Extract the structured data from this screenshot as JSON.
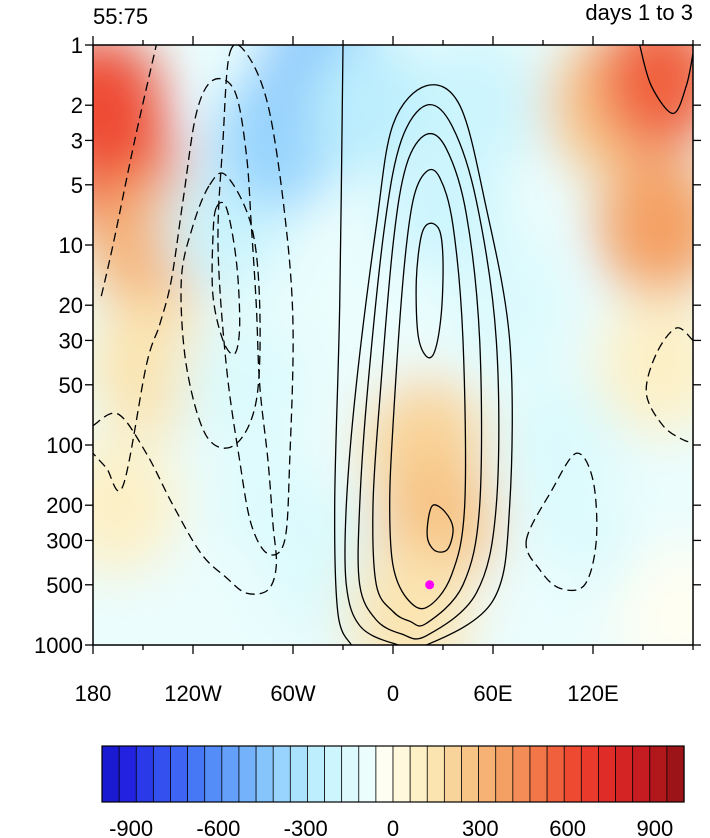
{
  "chart_data": {
    "type": "heatmap",
    "title_left": "55:75",
    "title_right": "days 1 to 3",
    "xlabel": "",
    "ylabel": "",
    "x_range": [
      -180,
      180
    ],
    "y_range": [
      1,
      1000
    ],
    "y_scale": "log",
    "y_reversed": true,
    "x_ticks": [
      {
        "value": -180,
        "label": "180"
      },
      {
        "value": -120,
        "label": "120W"
      },
      {
        "value": -60,
        "label": "60W"
      },
      {
        "value": 0,
        "label": "0"
      },
      {
        "value": 60,
        "label": "60E"
      },
      {
        "value": 120,
        "label": "120E"
      }
    ],
    "y_ticks": [
      {
        "value": 1,
        "label": "1"
      },
      {
        "value": 2,
        "label": "2"
      },
      {
        "value": 3,
        "label": "3"
      },
      {
        "value": 5,
        "label": "5"
      },
      {
        "value": 10,
        "label": "10"
      },
      {
        "value": 20,
        "label": "20"
      },
      {
        "value": 30,
        "label": "30"
      },
      {
        "value": 50,
        "label": "50"
      },
      {
        "value": 100,
        "label": "100"
      },
      {
        "value": 200,
        "label": "200"
      },
      {
        "value": 300,
        "label": "300"
      },
      {
        "value": 500,
        "label": "500"
      },
      {
        "value": 1000,
        "label": "1000"
      }
    ],
    "shading": {
      "min": -1000,
      "max": 1000,
      "interval": 50,
      "colorbar_ticks": [
        {
          "value": -900,
          "label": "-900"
        },
        {
          "value": -600,
          "label": "-600"
        },
        {
          "value": -300,
          "label": "-300"
        },
        {
          "value": 0,
          "label": "0"
        },
        {
          "value": 300,
          "label": "300"
        },
        {
          "value": 600,
          "label": "600"
        },
        {
          "value": 900,
          "label": "900"
        }
      ],
      "colors": [
        "#1a1ad2",
        "#2222e0",
        "#2b3ae8",
        "#3450ee",
        "#3d64f2",
        "#4678f5",
        "#548cf8",
        "#64a0fa",
        "#74b2fb",
        "#86c4fc",
        "#98d4fd",
        "#aae2fd",
        "#bceefd",
        "#ccf5fd",
        "#dcfafd",
        "#ebfdfd",
        "#fffef2",
        "#fff8dc",
        "#fdf0c6",
        "#fbe4b0",
        "#f9d49a",
        "#f7c486",
        "#f6b274",
        "#f4a064",
        "#f38c56",
        "#f27648",
        "#f0603c",
        "#ee4a32",
        "#ea3a2c",
        "#e02c28",
        "#d42424",
        "#c41c20",
        "#b0181c",
        "#9c1418"
      ],
      "patches": [
        {
          "lon": -160,
          "p": 5,
          "value": 550
        },
        {
          "lon": -175,
          "p": 2,
          "value": 600
        },
        {
          "lon": -145,
          "p": 10,
          "value": 350
        },
        {
          "lon": -145,
          "p": 40,
          "value": 150
        },
        {
          "lon": -165,
          "p": 200,
          "value": 60
        },
        {
          "lon": -100,
          "p": 8,
          "value": -180
        },
        {
          "lon": -70,
          "p": 3,
          "value": -380
        },
        {
          "lon": -40,
          "p": 1.3,
          "value": -450
        },
        {
          "lon": -15,
          "p": 2,
          "value": -250
        },
        {
          "lon": -90,
          "p": 50,
          "value": -120
        },
        {
          "lon": -70,
          "p": 250,
          "value": -170
        },
        {
          "lon": -40,
          "p": 400,
          "value": -130
        },
        {
          "lon": -110,
          "p": 600,
          "value": -80
        },
        {
          "lon": 30,
          "p": 8,
          "value": -230
        },
        {
          "lon": 50,
          "p": 2,
          "value": -200
        },
        {
          "lon": 70,
          "p": 20,
          "value": -170
        },
        {
          "lon": 0,
          "p": 25,
          "value": -80
        },
        {
          "lon": 20,
          "p": 100,
          "value": 180
        },
        {
          "lon": 25,
          "p": 250,
          "value": 280
        },
        {
          "lon": 10,
          "p": 700,
          "value": 170
        },
        {
          "lon": 100,
          "p": 100,
          "value": -140
        },
        {
          "lon": 110,
          "p": 400,
          "value": -160
        },
        {
          "lon": 90,
          "p": 800,
          "value": -60
        },
        {
          "lon": 130,
          "p": 2,
          "value": 280
        },
        {
          "lon": 160,
          "p": 1.5,
          "value": 550
        },
        {
          "lon": 160,
          "p": 8,
          "value": 380
        },
        {
          "lon": 160,
          "p": 40,
          "value": 100
        },
        {
          "lon": 170,
          "p": 700,
          "value": -30
        }
      ]
    },
    "contours": [
      {
        "sign": "positive",
        "lines": [
          {
            "points": [
              [
                -30,
                1
              ],
              [
                -32,
                20
              ],
              [
                -35,
                200
              ],
              [
                -33,
                700
              ],
              [
                -25,
                1000
              ]
            ]
          },
          {
            "points": [
              [
                20,
                1000
              ],
              [
                60,
                600
              ],
              [
                70,
                200
              ],
              [
                70,
                30
              ],
              [
                55,
                6
              ],
              [
                40,
                2
              ],
              [
                20,
                1.6
              ],
              [
                0,
                2.5
              ],
              [
                -10,
                8
              ],
              [
                -22,
                50
              ],
              [
                -28,
                200
              ],
              [
                -28,
                500
              ],
              [
                -20,
                800
              ],
              [
                0,
                980
              ],
              [
                20,
                1000
              ]
            ]
          },
          {
            "points": [
              [
                20,
                900
              ],
              [
                50,
                550
              ],
              [
                62,
                200
              ],
              [
                62,
                30
              ],
              [
                50,
                6
              ],
              [
                35,
                2.5
              ],
              [
                20,
                2
              ],
              [
                5,
                3
              ],
              [
                -5,
                8
              ],
              [
                -15,
                50
              ],
              [
                -20,
                200
              ],
              [
                -20,
                500
              ],
              [
                -10,
                750
              ],
              [
                5,
                880
              ],
              [
                20,
                900
              ]
            ]
          },
          {
            "points": [
              [
                20,
                780
              ],
              [
                42,
                500
              ],
              [
                52,
                200
              ],
              [
                52,
                30
              ],
              [
                44,
                7
              ],
              [
                32,
                3.3
              ],
              [
                20,
                2.8
              ],
              [
                8,
                4
              ],
              [
                0,
                10
              ],
              [
                -8,
                60
              ],
              [
                -12,
                200
              ],
              [
                -10,
                500
              ],
              [
                0,
                680
              ],
              [
                10,
                760
              ],
              [
                20,
                780
              ]
            ]
          },
          {
            "points": [
              [
                20,
                650
              ],
              [
                35,
                450
              ],
              [
                43,
                200
              ],
              [
                42,
                30
              ],
              [
                36,
                8
              ],
              [
                28,
                4.6
              ],
              [
                20,
                4.3
              ],
              [
                12,
                6
              ],
              [
                6,
                15
              ],
              [
                0,
                80
              ],
              [
                -2,
                200
              ],
              [
                0,
                400
              ],
              [
                8,
                580
              ],
              [
                20,
                650
              ]
            ]
          },
          {
            "points": [
              [
                22,
                7.8
              ],
              [
                28,
                8.5
              ],
              [
                30,
                12
              ],
              [
                29,
                22
              ],
              [
                25,
                34
              ],
              [
                20,
                36
              ],
              [
                15,
                28
              ],
              [
                14,
                15
              ],
              [
                17,
                9
              ],
              [
                22,
                7.8
              ]
            ]
          },
          {
            "points": [
              [
                24,
                200
              ],
              [
                31,
                215
              ],
              [
                36,
                260
              ],
              [
                33,
                330
              ],
              [
                26,
                340
              ],
              [
                21,
                300
              ],
              [
                21,
                240
              ],
              [
                24,
                200
              ]
            ]
          },
          {
            "points": [
              [
                148,
                1
              ],
              [
                155,
                1.6
              ],
              [
                168,
                2.2
              ],
              [
                176,
                1.6
              ],
              [
                180,
                1.1
              ]
            ]
          }
        ]
      },
      {
        "sign": "negative",
        "lines": [
          {
            "points": [
              [
                -180,
                80
              ],
              [
                -165,
                70
              ],
              [
                -148,
                110
              ],
              [
                -132,
                200
              ],
              [
                -115,
                350
              ],
              [
                -100,
                460
              ],
              [
                -88,
                550
              ],
              [
                -75,
                530
              ],
              [
                -70,
                400
              ],
              [
                -72,
                250
              ],
              [
                -75,
                120
              ],
              [
                -80,
                50
              ],
              [
                -82,
                20
              ],
              [
                -85,
                8
              ],
              [
                -88,
                3.5
              ],
              [
                -95,
                1.7
              ],
              [
                -108,
                1.5
              ],
              [
                -118,
                2.2
              ],
              [
                -126,
                6
              ],
              [
                -133,
                15
              ],
              [
                -140,
                25
              ],
              [
                -148,
                40
              ],
              [
                -162,
                160
              ],
              [
                -172,
                130
              ],
              [
                -180,
                110
              ]
            ]
          },
          {
            "points": [
              [
                -110,
                5
              ],
              [
                -100,
                4.5
              ],
              [
                -85,
                8
              ],
              [
                -80,
                20
              ],
              [
                -82,
                60
              ],
              [
                -95,
                100
              ],
              [
                -112,
                90
              ],
              [
                -124,
                40
              ],
              [
                -127,
                15
              ],
              [
                -120,
                8
              ],
              [
                -110,
                5
              ]
            ]
          },
          {
            "points": [
              [
                -106,
                6.5
              ],
              [
                -100,
                6.5
              ],
              [
                -94,
                12
              ],
              [
                -92,
                25
              ],
              [
                -95,
                35
              ],
              [
                -102,
                30
              ],
              [
                -108,
                18
              ],
              [
                -108,
                9
              ],
              [
                -106,
                6.5
              ]
            ]
          },
          {
            "points": [
              [
                -98,
                1.1
              ],
              [
                -88,
                1.1
              ],
              [
                -75,
                2
              ],
              [
                -65,
                7
              ],
              [
                -60,
                25
              ],
              [
                -62,
                120
              ],
              [
                -65,
                300
              ],
              [
                -75,
                350
              ],
              [
                -85,
                250
              ],
              [
                -92,
                120
              ],
              [
                -100,
                40
              ],
              [
                -105,
                10
              ],
              [
                -102,
                3
              ],
              [
                -98,
                1.1
              ]
            ]
          },
          {
            "points": [
              [
                -175,
                18
              ],
              [
                -168,
                10
              ],
              [
                -155,
                3
              ],
              [
                -142,
                1
              ]
            ]
          },
          {
            "points": [
              [
                80,
                300
              ],
              [
                95,
                170
              ],
              [
                110,
                110
              ],
              [
                120,
                150
              ],
              [
                122,
                300
              ],
              [
                115,
                500
              ],
              [
                100,
                520
              ],
              [
                88,
                420
              ],
              [
                80,
                300
              ]
            ]
          },
          {
            "points": [
              [
                180,
                30
              ],
              [
                170,
                26
              ],
              [
                158,
                35
              ],
              [
                152,
                55
              ],
              [
                162,
                80
              ],
              [
                175,
                95
              ],
              [
                180,
                95
              ]
            ]
          }
        ]
      }
    ],
    "marker": {
      "lon": 22,
      "p": 500,
      "color": "#ff00ff"
    }
  }
}
